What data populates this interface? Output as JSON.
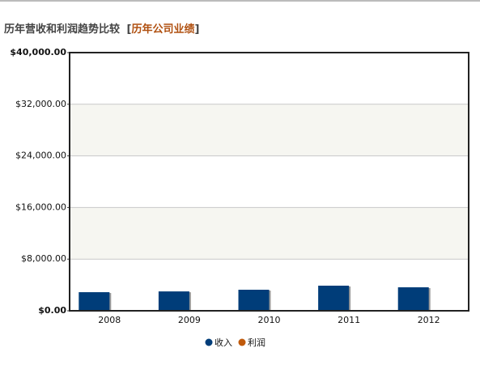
{
  "chart_data": {
    "type": "bar",
    "title": "历年营收和利润趋势比较",
    "title_link": "历年公司业绩",
    "title_brackets": [
      "[",
      "]"
    ],
    "categories": [
      "2008",
      "2009",
      "2010",
      "2011",
      "2012"
    ],
    "series": [
      {
        "name": "收入",
        "color": "#003d79",
        "values": [
          2880,
          3000,
          3260,
          3890,
          3640
        ]
      },
      {
        "name": "利润",
        "color": "#c05a0c",
        "values": [
          0,
          0,
          0,
          0,
          0
        ]
      }
    ],
    "ylim": [
      0,
      40000
    ],
    "yticks": [
      {
        "value": 0,
        "label": "$0.00"
      },
      {
        "value": 8000,
        "label": "$8,000.00"
      },
      {
        "value": 16000,
        "label": "$16,000.00"
      },
      {
        "value": 24000,
        "label": "$24,000.00"
      },
      {
        "value": 32000,
        "label": "$32,000.00"
      },
      {
        "value": 40000,
        "label": "$40,000.00"
      }
    ],
    "grid": true,
    "legend": "bottom"
  }
}
